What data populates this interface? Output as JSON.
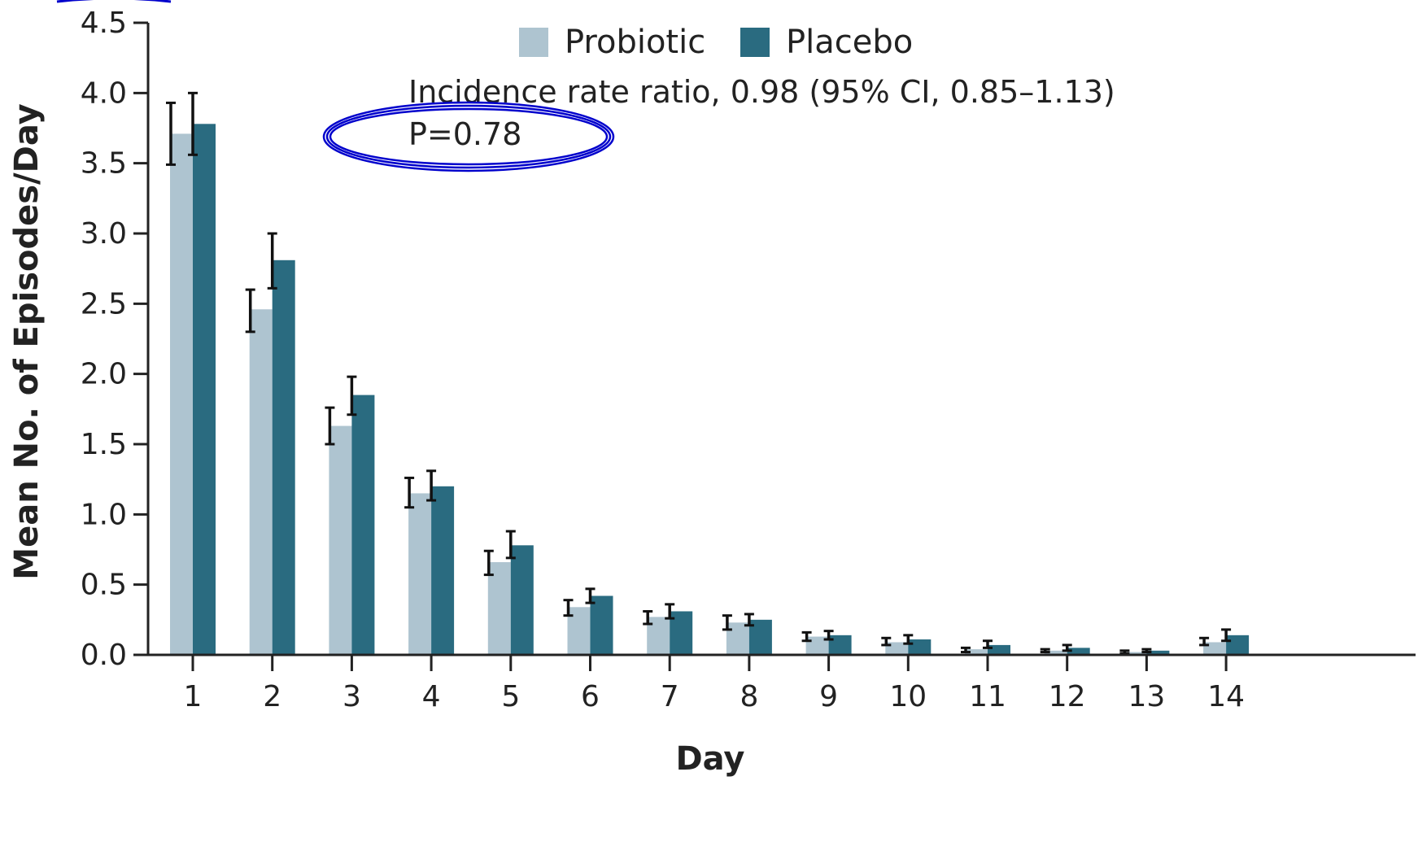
{
  "chart_data": {
    "type": "bar",
    "xlabel": "Day",
    "ylabel": "Mean No. of Episodes/Day",
    "ylim": [
      0,
      4.5
    ],
    "yticks": [
      "0.0",
      "0.5",
      "1.0",
      "1.5",
      "2.0",
      "2.5",
      "3.0",
      "3.5",
      "4.0",
      "4.5"
    ],
    "categories": [
      "1",
      "2",
      "3",
      "4",
      "5",
      "6",
      "7",
      "8",
      "9",
      "10",
      "11",
      "12",
      "13",
      "14"
    ],
    "series": [
      {
        "name": "Probiotic",
        "color": "#aec4d0",
        "values": [
          3.71,
          2.46,
          1.63,
          1.15,
          0.66,
          0.34,
          0.27,
          0.23,
          0.13,
          0.09,
          0.04,
          0.03,
          0.02,
          0.09
        ],
        "ci_low": [
          3.49,
          2.3,
          1.5,
          1.05,
          0.57,
          0.28,
          0.22,
          0.18,
          0.1,
          0.07,
          0.02,
          0.02,
          0.01,
          0.07
        ],
        "ci_high": [
          3.93,
          2.6,
          1.76,
          1.26,
          0.74,
          0.39,
          0.31,
          0.28,
          0.16,
          0.12,
          0.05,
          0.04,
          0.03,
          0.12
        ]
      },
      {
        "name": "Placebo",
        "color": "#2a6b80",
        "values": [
          3.78,
          2.81,
          1.85,
          1.2,
          0.78,
          0.42,
          0.31,
          0.25,
          0.14,
          0.11,
          0.07,
          0.05,
          0.03,
          0.14
        ],
        "ci_low": [
          3.56,
          2.61,
          1.71,
          1.1,
          0.69,
          0.37,
          0.26,
          0.21,
          0.11,
          0.08,
          0.05,
          0.03,
          0.02,
          0.1
        ],
        "ci_high": [
          4.0,
          3.0,
          1.98,
          1.31,
          0.88,
          0.47,
          0.36,
          0.29,
          0.17,
          0.14,
          0.1,
          0.07,
          0.04,
          0.18
        ]
      }
    ],
    "legend_position": "top-center",
    "grid": false,
    "annotations": {
      "irr": "Incidence rate ratio, 0.98 (95% CI, 0.85–1.13)",
      "p_value": "P=0.78",
      "p_value_circled": true,
      "circle_color": "#0000cc"
    },
    "colors": {
      "axis": "#222222",
      "error_bar": "#111111"
    }
  }
}
